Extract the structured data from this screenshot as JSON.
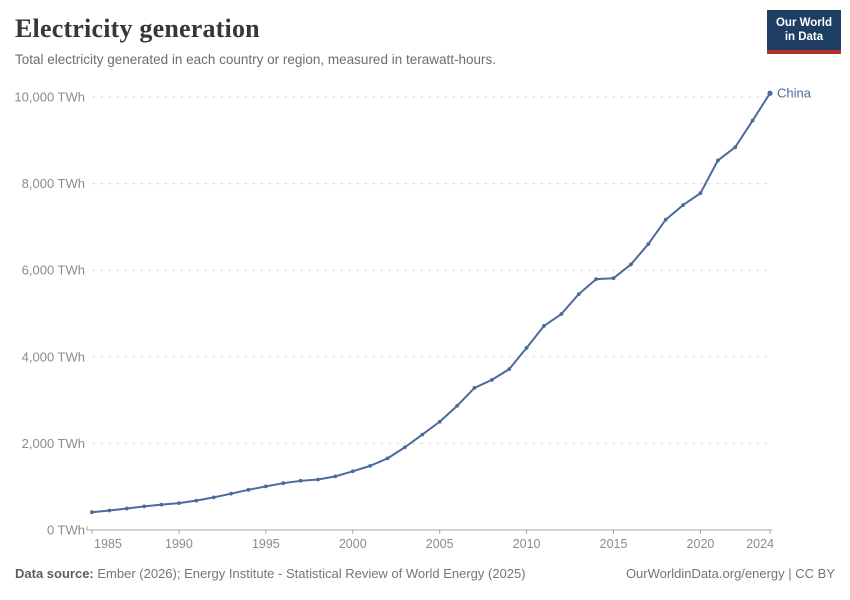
{
  "header": {
    "title": "Electricity generation",
    "subtitle": "Total electricity generated in each country or region, measured in terawatt-hours.",
    "logo": {
      "line1": "Our World",
      "line2": "in Data"
    }
  },
  "footer": {
    "source_label": "Data source:",
    "source_text": "Ember (2026); Energy Institute - Statistical Review of World Energy (2025)",
    "attribution": "OurWorldinData.org/energy | CC BY"
  },
  "colors": {
    "series": "#4C6A9C",
    "title_text": "#383636",
    "subtitle_text": "#6d6d6d",
    "axis_text": "#8c8c8c",
    "gridline": "#dcdcdc",
    "axis_line": "#a8a8a8",
    "logo_bg": "#1d3d63",
    "logo_stripe": "#b5312a",
    "footer_text": "#757575"
  },
  "chart_data": {
    "type": "line",
    "title": "Electricity generation",
    "subtitle": "Total electricity generated in each country or region, measured in terawatt-hours.",
    "xlabel": "",
    "ylabel": "",
    "unit": "TWh",
    "xlim": [
      1985,
      2024
    ],
    "ylim": [
      0,
      10000
    ],
    "x_ticks": [
      1985,
      1990,
      1995,
      2000,
      2005,
      2010,
      2015,
      2020,
      2024
    ],
    "y_ticks": [
      0,
      2000,
      4000,
      6000,
      8000,
      10000
    ],
    "y_tick_suffix": " TWh",
    "grid": "horizontal-dashed",
    "legend_position": "end-of-line",
    "series": [
      {
        "name": "China",
        "x": [
          1985,
          1986,
          1987,
          1988,
          1989,
          1990,
          1991,
          1992,
          1993,
          1994,
          1995,
          1996,
          1997,
          1998,
          1999,
          2000,
          2001,
          2002,
          2003,
          2004,
          2005,
          2006,
          2007,
          2008,
          2009,
          2010,
          2011,
          2012,
          2013,
          2014,
          2015,
          2016,
          2017,
          2018,
          2019,
          2020,
          2021,
          2022,
          2023,
          2024
        ],
        "values": [
          411,
          450,
          497,
          545,
          585,
          621,
          678,
          754,
          839,
          928,
          1007,
          1081,
          1136,
          1167,
          1239,
          1356,
          1481,
          1654,
          1911,
          2203,
          2500,
          2866,
          3282,
          3467,
          3715,
          4207,
          4713,
          4988,
          5447,
          5794,
          5815,
          6133,
          6604,
          7166,
          7504,
          7779,
          8534,
          8840,
          9456,
          10087
        ]
      }
    ]
  }
}
